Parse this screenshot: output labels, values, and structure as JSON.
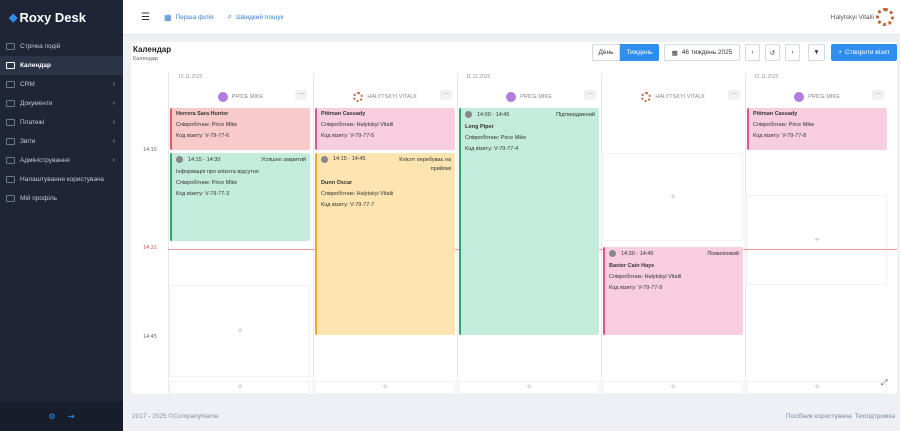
{
  "app": {
    "logo": "Roxy Desk"
  },
  "sidebar": {
    "items": [
      {
        "label": "Стрічка подій"
      },
      {
        "label": "Календар"
      },
      {
        "label": "CRM"
      },
      {
        "label": "Документи"
      },
      {
        "label": "Платежі"
      },
      {
        "label": "Звіти"
      },
      {
        "label": "Адміністрування"
      },
      {
        "label": "Налаштування користувача"
      },
      {
        "label": "Мій профіль"
      }
    ]
  },
  "topbar": {
    "branch": "Перша філія",
    "search": "Швидкий пошук",
    "user": "Halytskyi Vitalii"
  },
  "page": {
    "title": "Календар",
    "breadcrumb": "Календар"
  },
  "toolbar": {
    "day": "День",
    "week": "Тиждень",
    "week_label": "46 тиждень 2025",
    "create": "Створити візит"
  },
  "calendar": {
    "days": [
      "10.11.2025",
      "11.11.2025",
      "12.11.2025"
    ],
    "resources": [
      "PRICE MIKE",
      "HALYTSKYI VITALII",
      "PRICE MIKE",
      "HALYTSKYI VITALII",
      "PRICE MIKE"
    ],
    "times": [
      "14:15",
      "14:31",
      "14:45"
    ],
    "events": [
      {
        "name": "Herrera Sara Hunter",
        "employee": "Співробітник: Price Mike",
        "code": "Код візиту: V-79-77-6"
      },
      {
        "name": "Pittman Cassady",
        "employee": "Співробітник: Halytskyi Vitalii",
        "code": "Код візиту: V-79-77-5"
      },
      {
        "time": "14:00 - 14:45",
        "status": "Підтверджений",
        "name": "Long Piper",
        "employee": "Співробітник: Price Mike",
        "code": "Код візиту: V-79-77-4"
      },
      {
        "name": "Pittman Cassady",
        "employee": "Співробітник: Price Mike",
        "code": "Код візиту: V-79-77-8"
      },
      {
        "time": "14:15 - 14:30",
        "status": "Успішно закритий",
        "name": "Інформація про клієнта відсутня",
        "employee": "Співробітник: Price Mike",
        "code": "Код візиту: V-79-77-3"
      },
      {
        "time": "14:15 - 14:45",
        "status": "Клієнт перебуває на прийомі",
        "name": "Dunn Oscar",
        "employee": "Співробітник: Halytskyi Vitalii",
        "code": "Код візиту: V-79-77-7"
      },
      {
        "time": "14:30 - 14:45",
        "status": "Помилковий",
        "name": "Baxter Cain Hays",
        "employee": "Співробітник: Halytskyi Vitalii",
        "code": "Код візиту: V-79-77-9"
      }
    ]
  },
  "footer": {
    "copyright": "2017 - 2025 ©CompanyName",
    "guide": "Посібник користувача",
    "support": "Техпідтримка"
  }
}
